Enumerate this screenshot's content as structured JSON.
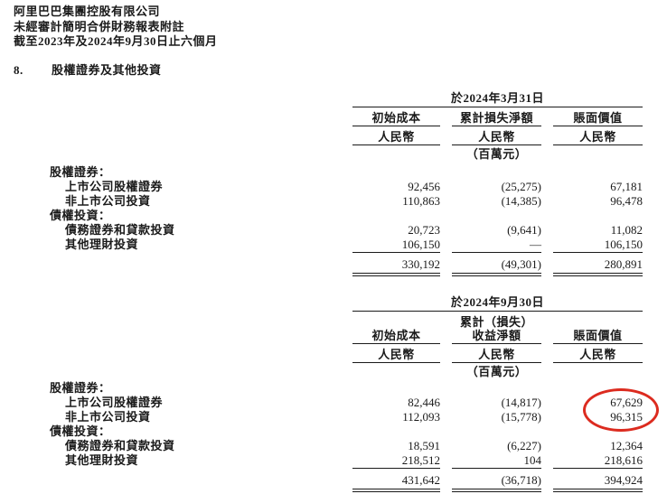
{
  "document": {
    "company": "阿里巴巴集團控股有限公司",
    "statement_title": "未經審計簡明合併財務報表附註",
    "period": "截至2023年及2024年9月30日止六個月"
  },
  "section": {
    "number": "8.",
    "title": "股權證券及其他投資"
  },
  "tables": [
    {
      "date_header": "於2024年3月31日",
      "columns": [
        {
          "title_lines": [
            "初始成本"
          ],
          "currency": "人民幣"
        },
        {
          "title_lines": [
            "累計損失淨額"
          ],
          "currency": "人民幣",
          "unit": "（百萬元）"
        },
        {
          "title_lines": [
            "賬面價值"
          ],
          "currency": "人民幣"
        }
      ],
      "rows": [
        {
          "type": "category",
          "label": "股權證券："
        },
        {
          "type": "item",
          "label": "上市公司股權證券",
          "values": [
            "92,456",
            "(25,275)",
            "67,181"
          ]
        },
        {
          "type": "item",
          "label": "非上市公司投資",
          "values": [
            "110,863",
            "(14,385)",
            "96,478"
          ]
        },
        {
          "type": "category",
          "label": "債權投資："
        },
        {
          "type": "item",
          "label": "債務證券和貸款投資",
          "values": [
            "20,723",
            "(9,641)",
            "11,082"
          ]
        },
        {
          "type": "item",
          "label": "其他理財投資",
          "values": [
            "106,150",
            "—",
            "106,150"
          ]
        },
        {
          "type": "total",
          "values": [
            "330,192",
            "(49,301)",
            "280,891"
          ]
        }
      ]
    },
    {
      "date_header": "於2024年9月30日",
      "columns": [
        {
          "title_lines": [
            "初始成本"
          ],
          "currency": "人民幣"
        },
        {
          "title_lines": [
            "累計（損失）",
            "收益淨額"
          ],
          "currency": "人民幣",
          "unit": "（百萬元）"
        },
        {
          "title_lines": [
            "賬面價值"
          ],
          "currency": "人民幣"
        }
      ],
      "rows": [
        {
          "type": "category",
          "label": "股權證券："
        },
        {
          "type": "item",
          "label": "上市公司股權證券",
          "values": [
            "82,446",
            "(14,817)",
            "67,629"
          ]
        },
        {
          "type": "item",
          "label": "非上市公司投資",
          "values": [
            "112,093",
            "(15,778)",
            "96,315"
          ]
        },
        {
          "type": "category",
          "label": "債權投資："
        },
        {
          "type": "item",
          "label": "債務證券和貸款投資",
          "values": [
            "18,591",
            "(6,227)",
            "12,364"
          ]
        },
        {
          "type": "item",
          "label": "其他理財投資",
          "values": [
            "218,512",
            "104",
            "218,616"
          ]
        },
        {
          "type": "total",
          "values": [
            "431,642",
            "(36,718)",
            "394,924"
          ]
        }
      ]
    }
  ],
  "annotation": {
    "shape": "ellipse",
    "color": "#dc2b1f",
    "circled_values": [
      "67,629",
      "96,315"
    ]
  }
}
